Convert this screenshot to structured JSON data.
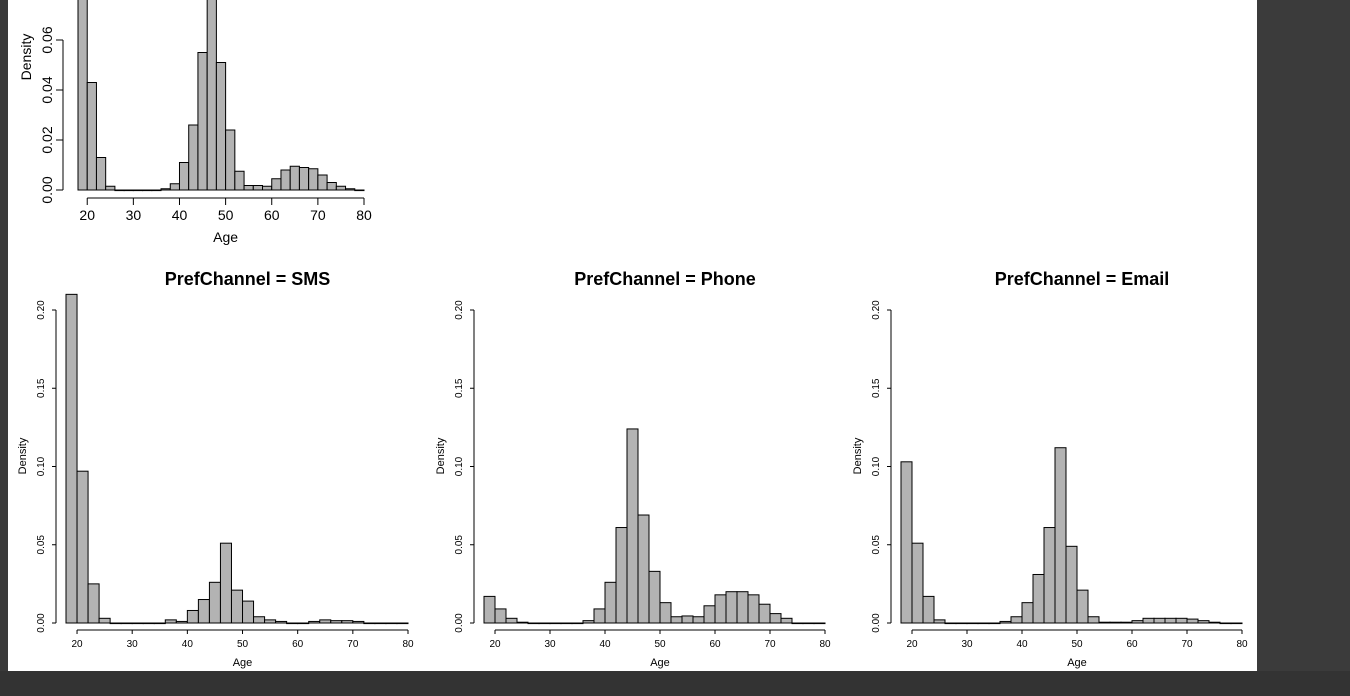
{
  "colors": {
    "bar_fill": "#b3b3b3",
    "bar_stroke": "#000000",
    "page": "#ffffff",
    "viewer_background": "#3a3a3a"
  },
  "chart_data": [
    {
      "type": "bar",
      "title": "",
      "xlabel": "Age",
      "ylabel": "Density",
      "xlim": [
        18,
        80
      ],
      "ylim": [
        0,
        0.06
      ],
      "x_ticks": [
        20,
        30,
        40,
        50,
        60,
        70,
        80
      ],
      "y_ticks": [
        0.0,
        0.02,
        0.04,
        0.06
      ],
      "y_tick_labels": [
        "0.00",
        "0.02",
        "0.04",
        "0.06"
      ],
      "bin_start": 18,
      "bin_width": 2,
      "values": [
        0.085,
        0.043,
        0.013,
        0.0015,
        0,
        0,
        0,
        0,
        0,
        0.0005,
        0.0025,
        0.011,
        0.026,
        0.055,
        0.085,
        0.051,
        0.024,
        0.0075,
        0.0018,
        0.0018,
        0.0015,
        0.0045,
        0.008,
        0.0095,
        0.009,
        0.0085,
        0.006,
        0.003,
        0.0015,
        0.0005,
        0
      ]
    },
    {
      "type": "bar",
      "title": "PrefChannel = SMS",
      "xlabel": "Age",
      "ylabel": "Density",
      "xlim": [
        18,
        80
      ],
      "ylim": [
        0,
        0.2
      ],
      "x_ticks": [
        20,
        30,
        40,
        50,
        60,
        70,
        80
      ],
      "y_ticks": [
        0.0,
        0.05,
        0.1,
        0.15,
        0.2
      ],
      "y_tick_labels": [
        "0.00",
        "0.05",
        "0.10",
        "0.15",
        "0.20"
      ],
      "bin_start": 18,
      "bin_width": 2,
      "values": [
        0.21,
        0.097,
        0.025,
        0.003,
        0,
        0,
        0,
        0,
        0,
        0.002,
        0.001,
        0.008,
        0.015,
        0.026,
        0.051,
        0.021,
        0.014,
        0.004,
        0.002,
        0.001,
        0,
        0,
        0.001,
        0.002,
        0.0015,
        0.0015,
        0.001,
        0,
        0,
        0,
        0
      ]
    },
    {
      "type": "bar",
      "title": "PrefChannel = Phone",
      "xlabel": "Age",
      "ylabel": "Density",
      "xlim": [
        18,
        80
      ],
      "ylim": [
        0,
        0.2
      ],
      "x_ticks": [
        20,
        30,
        40,
        50,
        60,
        70,
        80
      ],
      "y_ticks": [
        0.0,
        0.05,
        0.1,
        0.15,
        0.2
      ],
      "y_tick_labels": [
        "0.00",
        "0.05",
        "0.10",
        "0.15",
        "0.20"
      ],
      "bin_start": 18,
      "bin_width": 2,
      "values": [
        0.017,
        0.009,
        0.003,
        0.0005,
        0,
        0,
        0,
        0,
        0,
        0.0015,
        0.009,
        0.026,
        0.061,
        0.124,
        0.069,
        0.033,
        0.013,
        0.004,
        0.0045,
        0.004,
        0.011,
        0.018,
        0.02,
        0.02,
        0.018,
        0.012,
        0.006,
        0.003,
        0,
        0,
        0
      ]
    },
    {
      "type": "bar",
      "title": "PrefChannel = Email",
      "xlabel": "Age",
      "ylabel": "Density",
      "xlim": [
        18,
        80
      ],
      "ylim": [
        0,
        0.2
      ],
      "x_ticks": [
        20,
        30,
        40,
        50,
        60,
        70,
        80
      ],
      "y_ticks": [
        0.0,
        0.05,
        0.1,
        0.15,
        0.2
      ],
      "y_tick_labels": [
        "0.00",
        "0.05",
        "0.10",
        "0.15",
        "0.20"
      ],
      "bin_start": 18,
      "bin_width": 2,
      "values": [
        0.103,
        0.051,
        0.017,
        0.002,
        0,
        0,
        0,
        0,
        0,
        0.001,
        0.004,
        0.013,
        0.031,
        0.061,
        0.112,
        0.049,
        0.021,
        0.004,
        0.0005,
        0.0005,
        0.0005,
        0.0015,
        0.003,
        0.003,
        0.003,
        0.003,
        0.0025,
        0.0015,
        0.0005,
        0,
        0
      ]
    }
  ]
}
